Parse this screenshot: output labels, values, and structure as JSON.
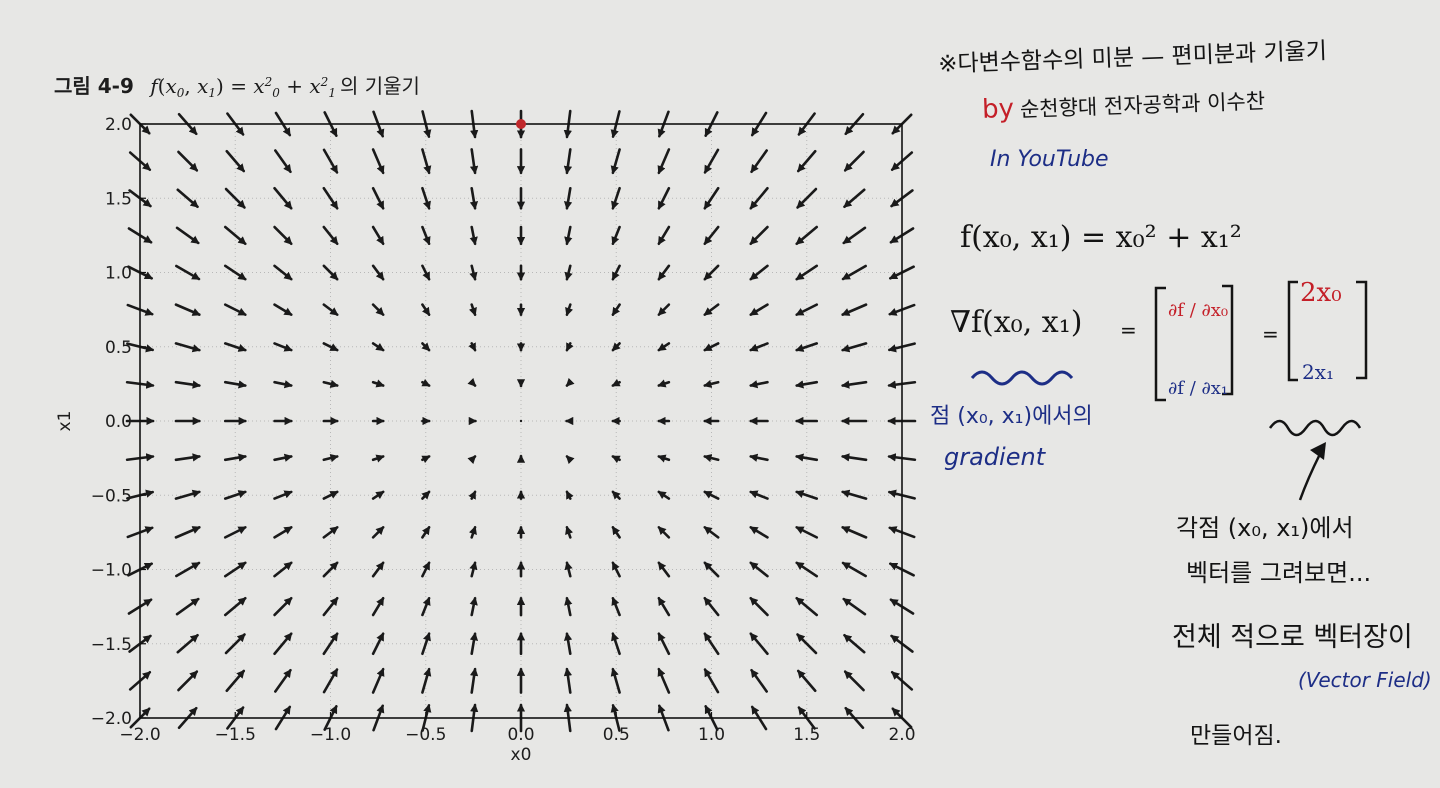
{
  "figure": {
    "label": "그림 4-9",
    "equation": {
      "f": "f",
      "x0": "x",
      "s0": "0",
      "x1": "x",
      "s1": "1",
      "eq": "=",
      "plus": "+",
      "p2": "2"
    },
    "suffix": "의 기울기"
  },
  "chart_data": {
    "type": "quiver",
    "title": "",
    "xlabel": "x0",
    "ylabel": "x1",
    "xlim": [
      -2.0,
      2.0
    ],
    "ylim": [
      -2.0,
      2.0
    ],
    "xticks": [
      "−2.0",
      "−1.5",
      "−1.0",
      "−0.5",
      "0.0",
      "0.5",
      "1.0",
      "1.5",
      "2.0"
    ],
    "yticks": [
      "−2.0",
      "−1.5",
      "−1.0",
      "−0.5",
      "0.0",
      "0.5",
      "1.0",
      "1.5",
      "2.0"
    ],
    "xtick_values": [
      -2.0,
      -1.5,
      -1.0,
      -0.5,
      0.0,
      0.5,
      1.0,
      1.5,
      2.0
    ],
    "ytick_values": [
      -2.0,
      -1.5,
      -1.0,
      -0.5,
      0.0,
      0.5,
      1.0,
      1.5,
      2.0
    ],
    "grid": "dotted",
    "field": "negative gradient of f(x0, x1) = x0^2 + x1^2",
    "grid_start": -2.0,
    "grid_step": 0.25,
    "grid_count": 17,
    "marker": {
      "x": 0.0,
      "y": 2.0,
      "color": "#c0282b"
    }
  },
  "notes": {
    "line1": "※다변수함수의 미분 — 편미분과 기울기",
    "by": "by",
    "author": "순천향대 전자공학과 이수찬",
    "youtube": "In YouTube",
    "func": "f(x₀, x₁) = x₀² + x₁²",
    "grad": "∇f(x₀, x₁)",
    "equals1": "=",
    "df_dx0": "∂f / ∂x₀",
    "df_dx1": "∂f / ∂x₁",
    "equals2": "=",
    "two_x0": "2x₀",
    "two_x1": "2x₁",
    "point_note": "점 (x₀, x₁)에서의",
    "gradient_word": "gradient",
    "each_point": "각점 (x₀, x₁)에서",
    "draw_vectors": "벡터를 그려보면...",
    "overall": "전체 적으로 벡터장이",
    "vector_field": "(Vector Field)",
    "made": "만들어짐."
  },
  "colors": {
    "ink_black": "#141414",
    "ink_red": "#c41f28",
    "ink_blue": "#1d2e86",
    "arrow": "#1a1a1a"
  }
}
